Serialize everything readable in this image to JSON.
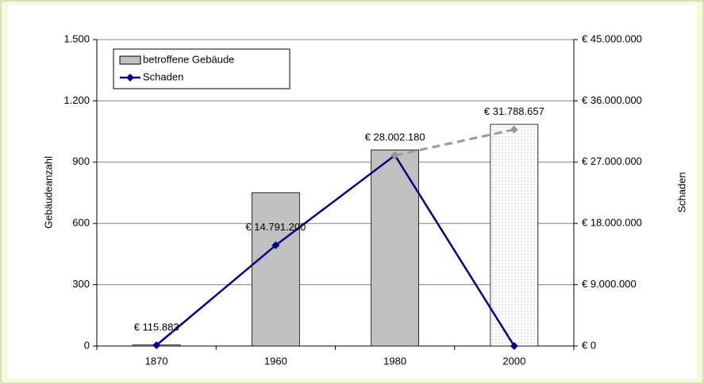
{
  "chart_data": {
    "type": "bar",
    "categories": [
      "1870",
      "1960",
      "1980",
      "2000"
    ],
    "ylabel": "Gebäudeanzahl",
    "y2label": "Schaden",
    "ylim": [
      0,
      1500
    ],
    "yticks": [
      0,
      300,
      600,
      900,
      {
        "value": 1200,
        "label": "1.200"
      },
      {
        "value": 1500,
        "label": "1.500"
      }
    ],
    "y2lim": [
      0,
      45000000
    ],
    "y2ticks": [
      {
        "value": 0,
        "label": "€ 0"
      },
      {
        "value": 9000000,
        "label": "€ 9.000.000"
      },
      {
        "value": 18000000,
        "label": "€ 18.000.000"
      },
      {
        "value": 27000000,
        "label": "€ 27.000.000"
      },
      {
        "value": 36000000,
        "label": "€ 36.000.000"
      },
      {
        "value": 45000000,
        "label": "€ 45.000.000"
      }
    ],
    "grid": true,
    "legend": "upper left",
    "series": [
      {
        "name": "betroffene Gebäude",
        "type": "bar",
        "color": "#c0c0c0",
        "dotted": [
          false,
          false,
          false,
          true
        ],
        "values": [
          5,
          750,
          960,
          1085
        ]
      },
      {
        "name": "Schaden",
        "type": "line",
        "axis": "y2",
        "color": "#000080",
        "values": [
          115883,
          14791200,
          28002180,
          0
        ],
        "value_labels": [
          "€ 115.883",
          "€ 14.791.200",
          "€ 28.002.180",
          null
        ]
      },
      {
        "type": "line",
        "axis": "y2",
        "color": "#999999",
        "dashed": true,
        "values": [
          null,
          null,
          28002180,
          31788657
        ],
        "value_labels": [
          null,
          null,
          null,
          "€ 31.788.657"
        ]
      }
    ]
  }
}
